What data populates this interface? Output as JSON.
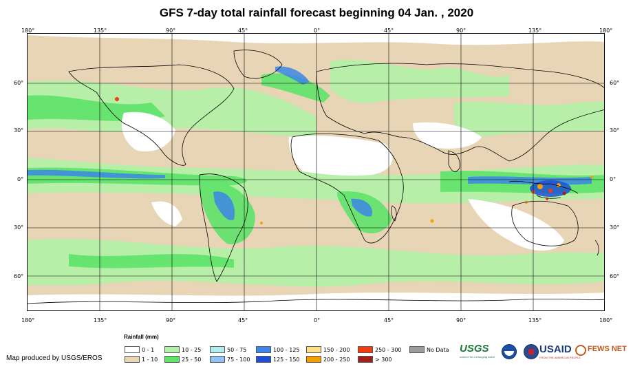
{
  "title": "GFS 7-day total rainfall forecast beginning 04 Jan. , 2020",
  "lon_labels": [
    "180°",
    "135°",
    "90°",
    "45°",
    "0°",
    "45°",
    "90°",
    "135°",
    "180°"
  ],
  "lat_labels": [
    "60°",
    "30°",
    "0°",
    "30°",
    "60°"
  ],
  "legend": {
    "title": "Rainfall (mm)",
    "items": [
      {
        "label": "0 - 1",
        "color": "#ffffff"
      },
      {
        "label": "1 - 10",
        "color": "#e8d5b5"
      },
      {
        "label": "10 - 25",
        "color": "#b5f0a8"
      },
      {
        "label": "25 - 50",
        "color": "#5fe36a"
      },
      {
        "label": "50 - 75",
        "color": "#b0ecf2"
      },
      {
        "label": "75 - 100",
        "color": "#8fc4f5"
      },
      {
        "label": "100 - 125",
        "color": "#3d86e6"
      },
      {
        "label": "125 - 150",
        "color": "#1f4fd6"
      },
      {
        "label": "150 - 200",
        "color": "#fce08a"
      },
      {
        "label": "200 - 250",
        "color": "#f5a000"
      },
      {
        "label": "250 - 300",
        "color": "#f03c10"
      },
      {
        "label": "> 300",
        "color": "#a3201a"
      },
      {
        "label": "No Data",
        "color": "#9c9c9c"
      }
    ]
  },
  "credit": "Map produced by USGS/EROS",
  "logos": {
    "usgs": "USGS",
    "usgs_tag": "science for a changing world",
    "usaid": "USAID",
    "usaid_tag": "FROM THE AMERICAN PEOPLE",
    "fews": "FEWS NET"
  },
  "colors": {
    "ocean_land_dry": "#e8d5b5",
    "light_green": "#b5f0a8",
    "green": "#5fe36a",
    "blue": "#3d86e6",
    "orange": "#f5a000",
    "red": "#f03c10"
  }
}
